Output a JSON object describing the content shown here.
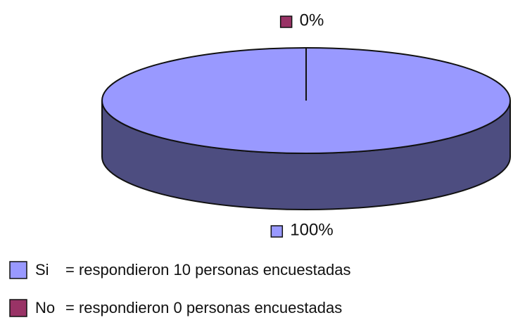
{
  "chart_data": {
    "type": "pie",
    "categories": [
      "Si",
      "No"
    ],
    "values": [
      100,
      0
    ],
    "value_labels": [
      "100%",
      "0%"
    ],
    "colors": [
      "#9999ff",
      "#993366"
    ],
    "legend_texts": [
      "= respondieron 10 personas encuestadas",
      "= respondieron 0 personas encuestadas"
    ]
  }
}
